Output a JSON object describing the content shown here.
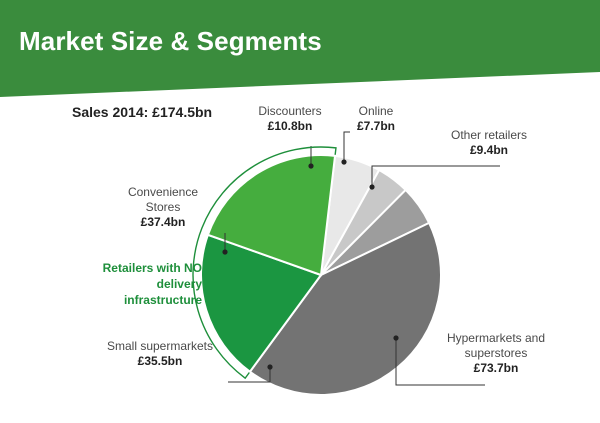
{
  "header": {
    "title": "Market Size & Segments",
    "background_color": "#3a8c3d"
  },
  "total_label": "Sales 2014: £174.5bn",
  "bracket_note": "Retailers with NO delivery infrastructure",
  "chart_data": {
    "type": "pie",
    "title": "Market Size & Segments",
    "subtitle": "Sales 2014: £174.5bn",
    "unit": "£bn",
    "total": 174.5,
    "slices": [
      {
        "label": "Discounters",
        "value_label": "£10.8bn",
        "value": 10.8,
        "color": "#e8e8e8"
      },
      {
        "label": "Online",
        "value_label": "£7.7bn",
        "value": 7.7,
        "color": "#c8c8c8"
      },
      {
        "label": "Other retailers",
        "value_label": "£9.4bn",
        "value": 9.4,
        "color": "#9d9d9d"
      },
      {
        "label": "Hypermarkets and superstores",
        "value_label": "£73.7bn",
        "value": 73.7,
        "color": "#737373"
      },
      {
        "label": "Small supermarkets",
        "value_label": "£35.5bn",
        "value": 35.5,
        "color": "#1b9641"
      },
      {
        "label": "Convenience Stores",
        "value_label": "£37.4bn",
        "value": 37.4,
        "color": "#45ad3e"
      }
    ],
    "annotation": {
      "text": "Retailers with NO delivery infrastructure",
      "covers": [
        "Small supermarkets",
        "Convenience Stores"
      ],
      "color": "#1e8f3b"
    }
  }
}
